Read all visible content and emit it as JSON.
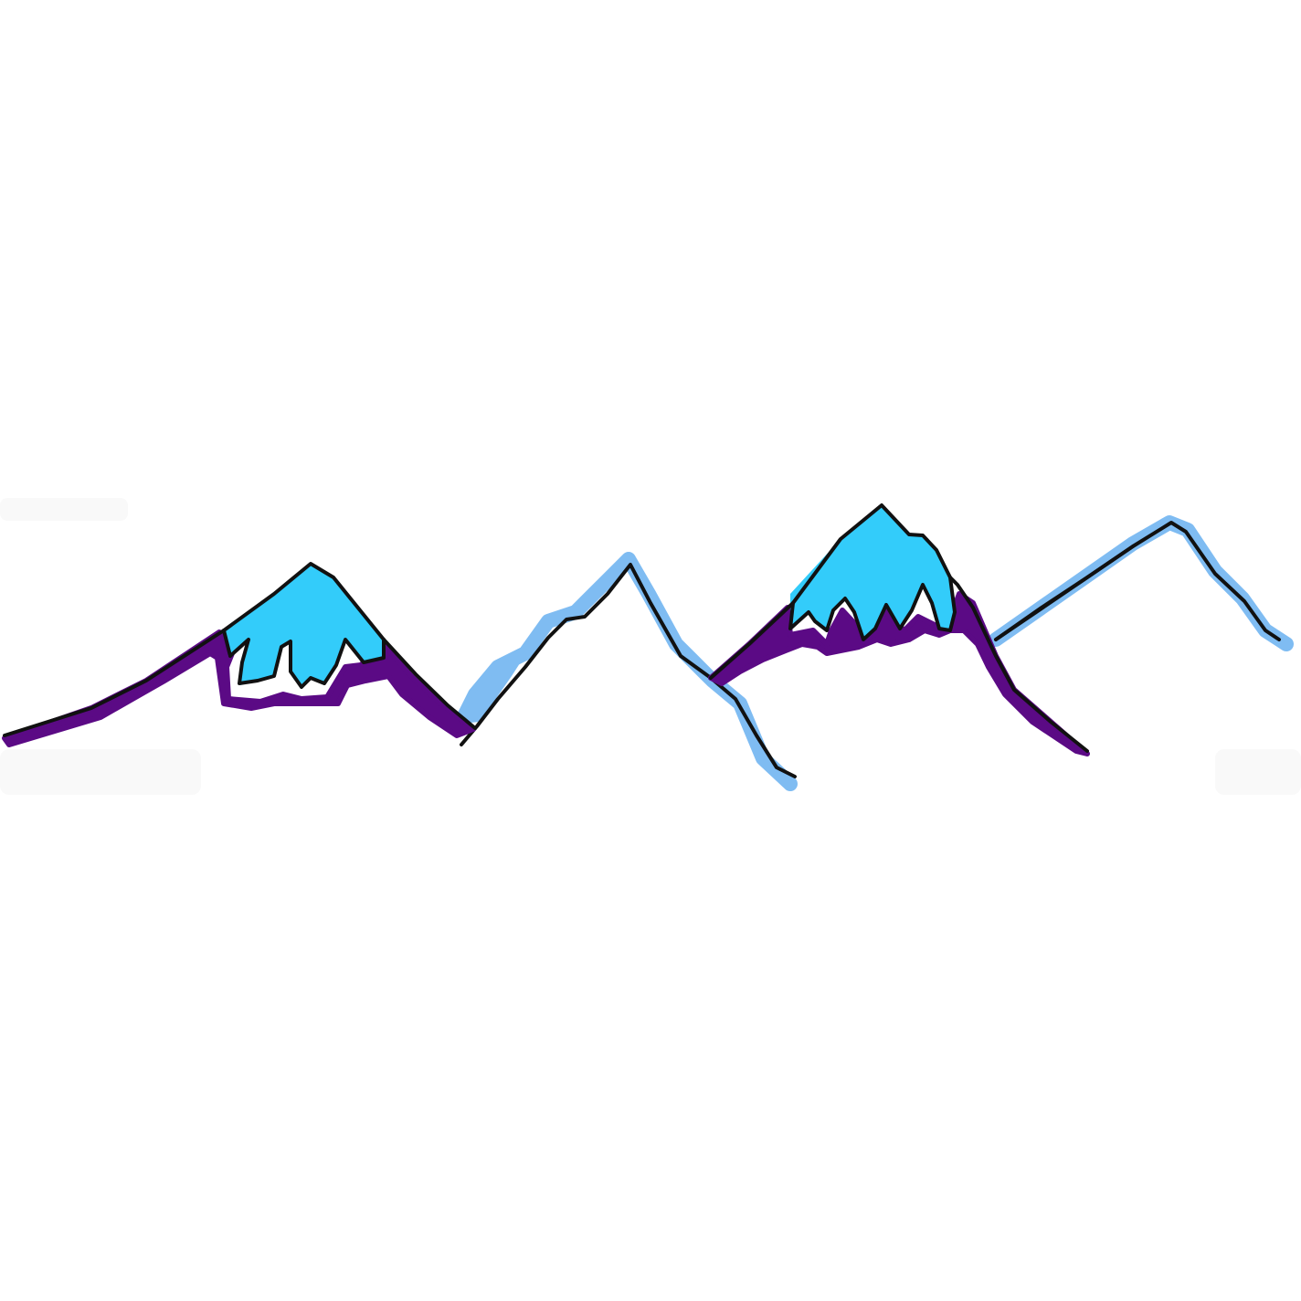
{
  "colors": {
    "background": "#ffffff",
    "snow_cap": "#33ccfa",
    "shadow": "#5b0a85",
    "glow": "#7fbcf2",
    "outline": "#111111",
    "smudge": "#f2f2f2"
  },
  "icons": {
    "illustration": "mountain-range-icon"
  }
}
